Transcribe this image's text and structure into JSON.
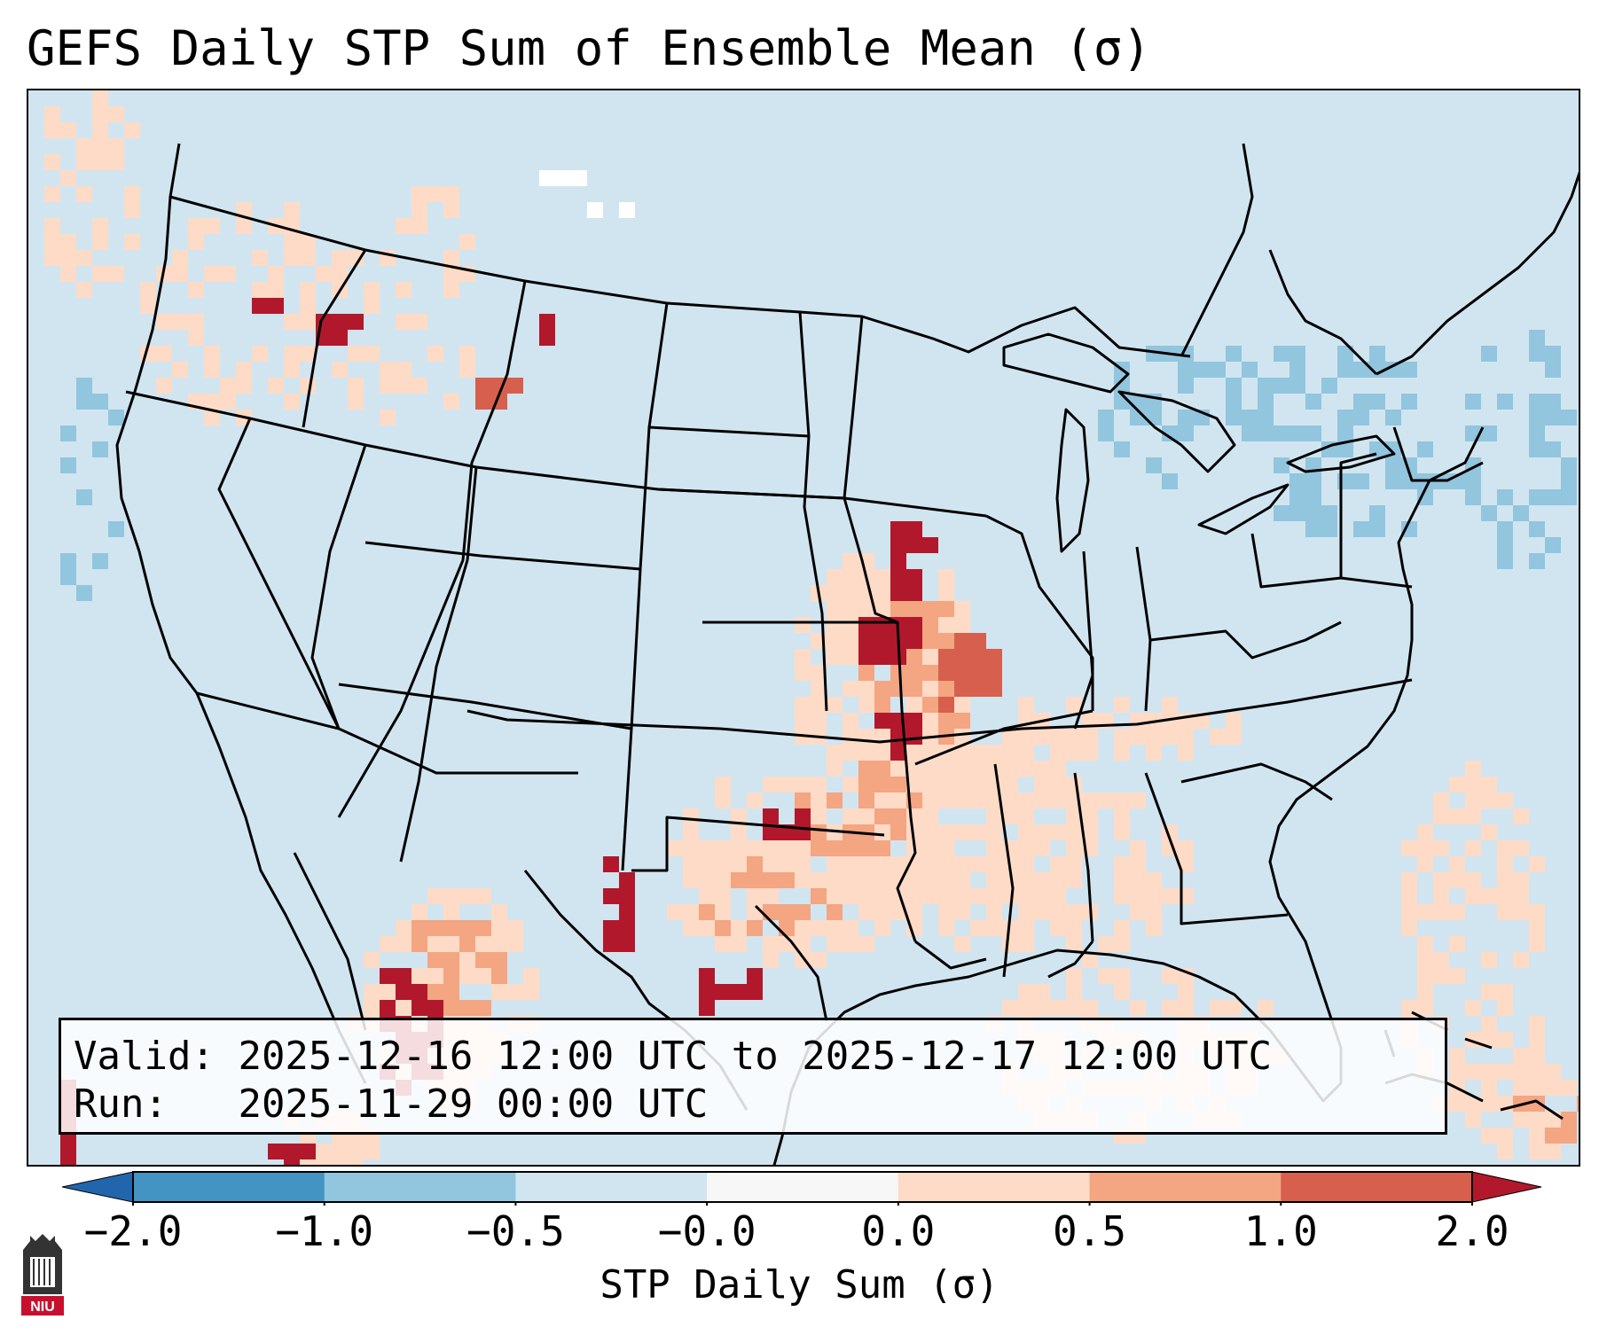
{
  "title": "GEFS Daily STP Sum of Ensemble Mean (σ)",
  "info": {
    "valid_label": "Valid:",
    "valid_text": "2025-12-16 12:00 UTC to 2025-12-17 12:00 UTC",
    "run_label": "Run:",
    "run_text": "2025-11-29 00:00 UTC"
  },
  "colorbar": {
    "label": "STP Daily Sum (σ)",
    "ticks": [
      "−2.0",
      "−1.0",
      "−0.5",
      "−0.0",
      "0.0",
      "0.5",
      "1.0",
      "2.0"
    ],
    "colors": [
      "#2166ac",
      "#4393c3",
      "#92c5de",
      "#d1e5f0",
      "#f7f7f7",
      "#fddbc7",
      "#f4a582",
      "#d6604d",
      "#b2182b"
    ]
  },
  "logo": {
    "text": "NIU",
    "icon": "niu-logo-icon",
    "color": "#c8102e"
  },
  "map": {
    "ocean_color": "#d1e5f0",
    "land_color": "#d1e5f0",
    "border_color": "#000000",
    "field_colors": {
      "light": "#fddbc7",
      "medium": "#f4a582",
      "strong": "#d6604d",
      "extreme": "#b2182b",
      "neg_light": "#92c5de",
      "white": "#ffffff"
    }
  }
}
